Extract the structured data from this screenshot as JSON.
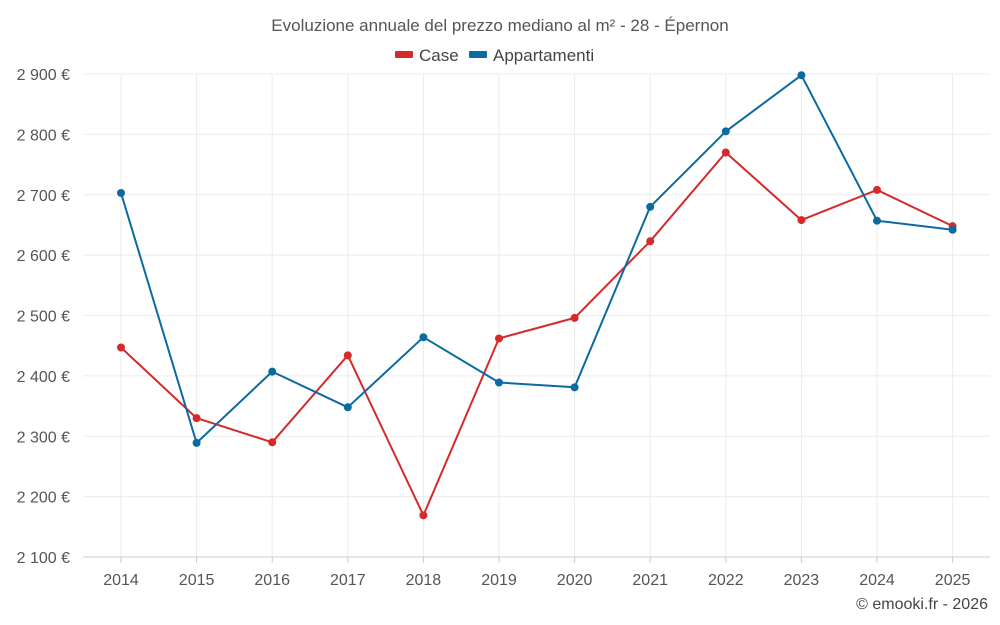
{
  "chart_data": {
    "type": "line",
    "title": "Evoluzione annuale del prezzo mediano al m² - 28 - Épernon",
    "categories": [
      "2014",
      "2015",
      "2016",
      "2017",
      "2018",
      "2019",
      "2020",
      "2021",
      "2022",
      "2023",
      "2024",
      "2025"
    ],
    "series": [
      {
        "name": "Case",
        "color": "#d42a2a",
        "values": [
          2447,
          2330,
          2290,
          2434,
          2169,
          2462,
          2496,
          2623,
          2770,
          2658,
          2708,
          2648
        ]
      },
      {
        "name": "Appartamenti",
        "color": "#0b6aa2",
        "values": [
          2703,
          2289,
          2407,
          2348,
          2464,
          2389,
          2381,
          2680,
          2805,
          2898,
          2657,
          2642
        ]
      }
    ],
    "ylim": [
      2100,
      2900
    ],
    "yticks": [
      2100,
      2200,
      2300,
      2400,
      2500,
      2600,
      2700,
      2800,
      2900
    ],
    "ytick_labels": [
      "2 100 €",
      "2 200 €",
      "2 300 €",
      "2 400 €",
      "2 500 €",
      "2 600 €",
      "2 700 €",
      "2 800 €",
      "2 900 €"
    ],
    "xlabel": "",
    "ylabel": "",
    "grid": true,
    "legend": "top-center"
  },
  "credit": "© emooki.fr - 2026"
}
